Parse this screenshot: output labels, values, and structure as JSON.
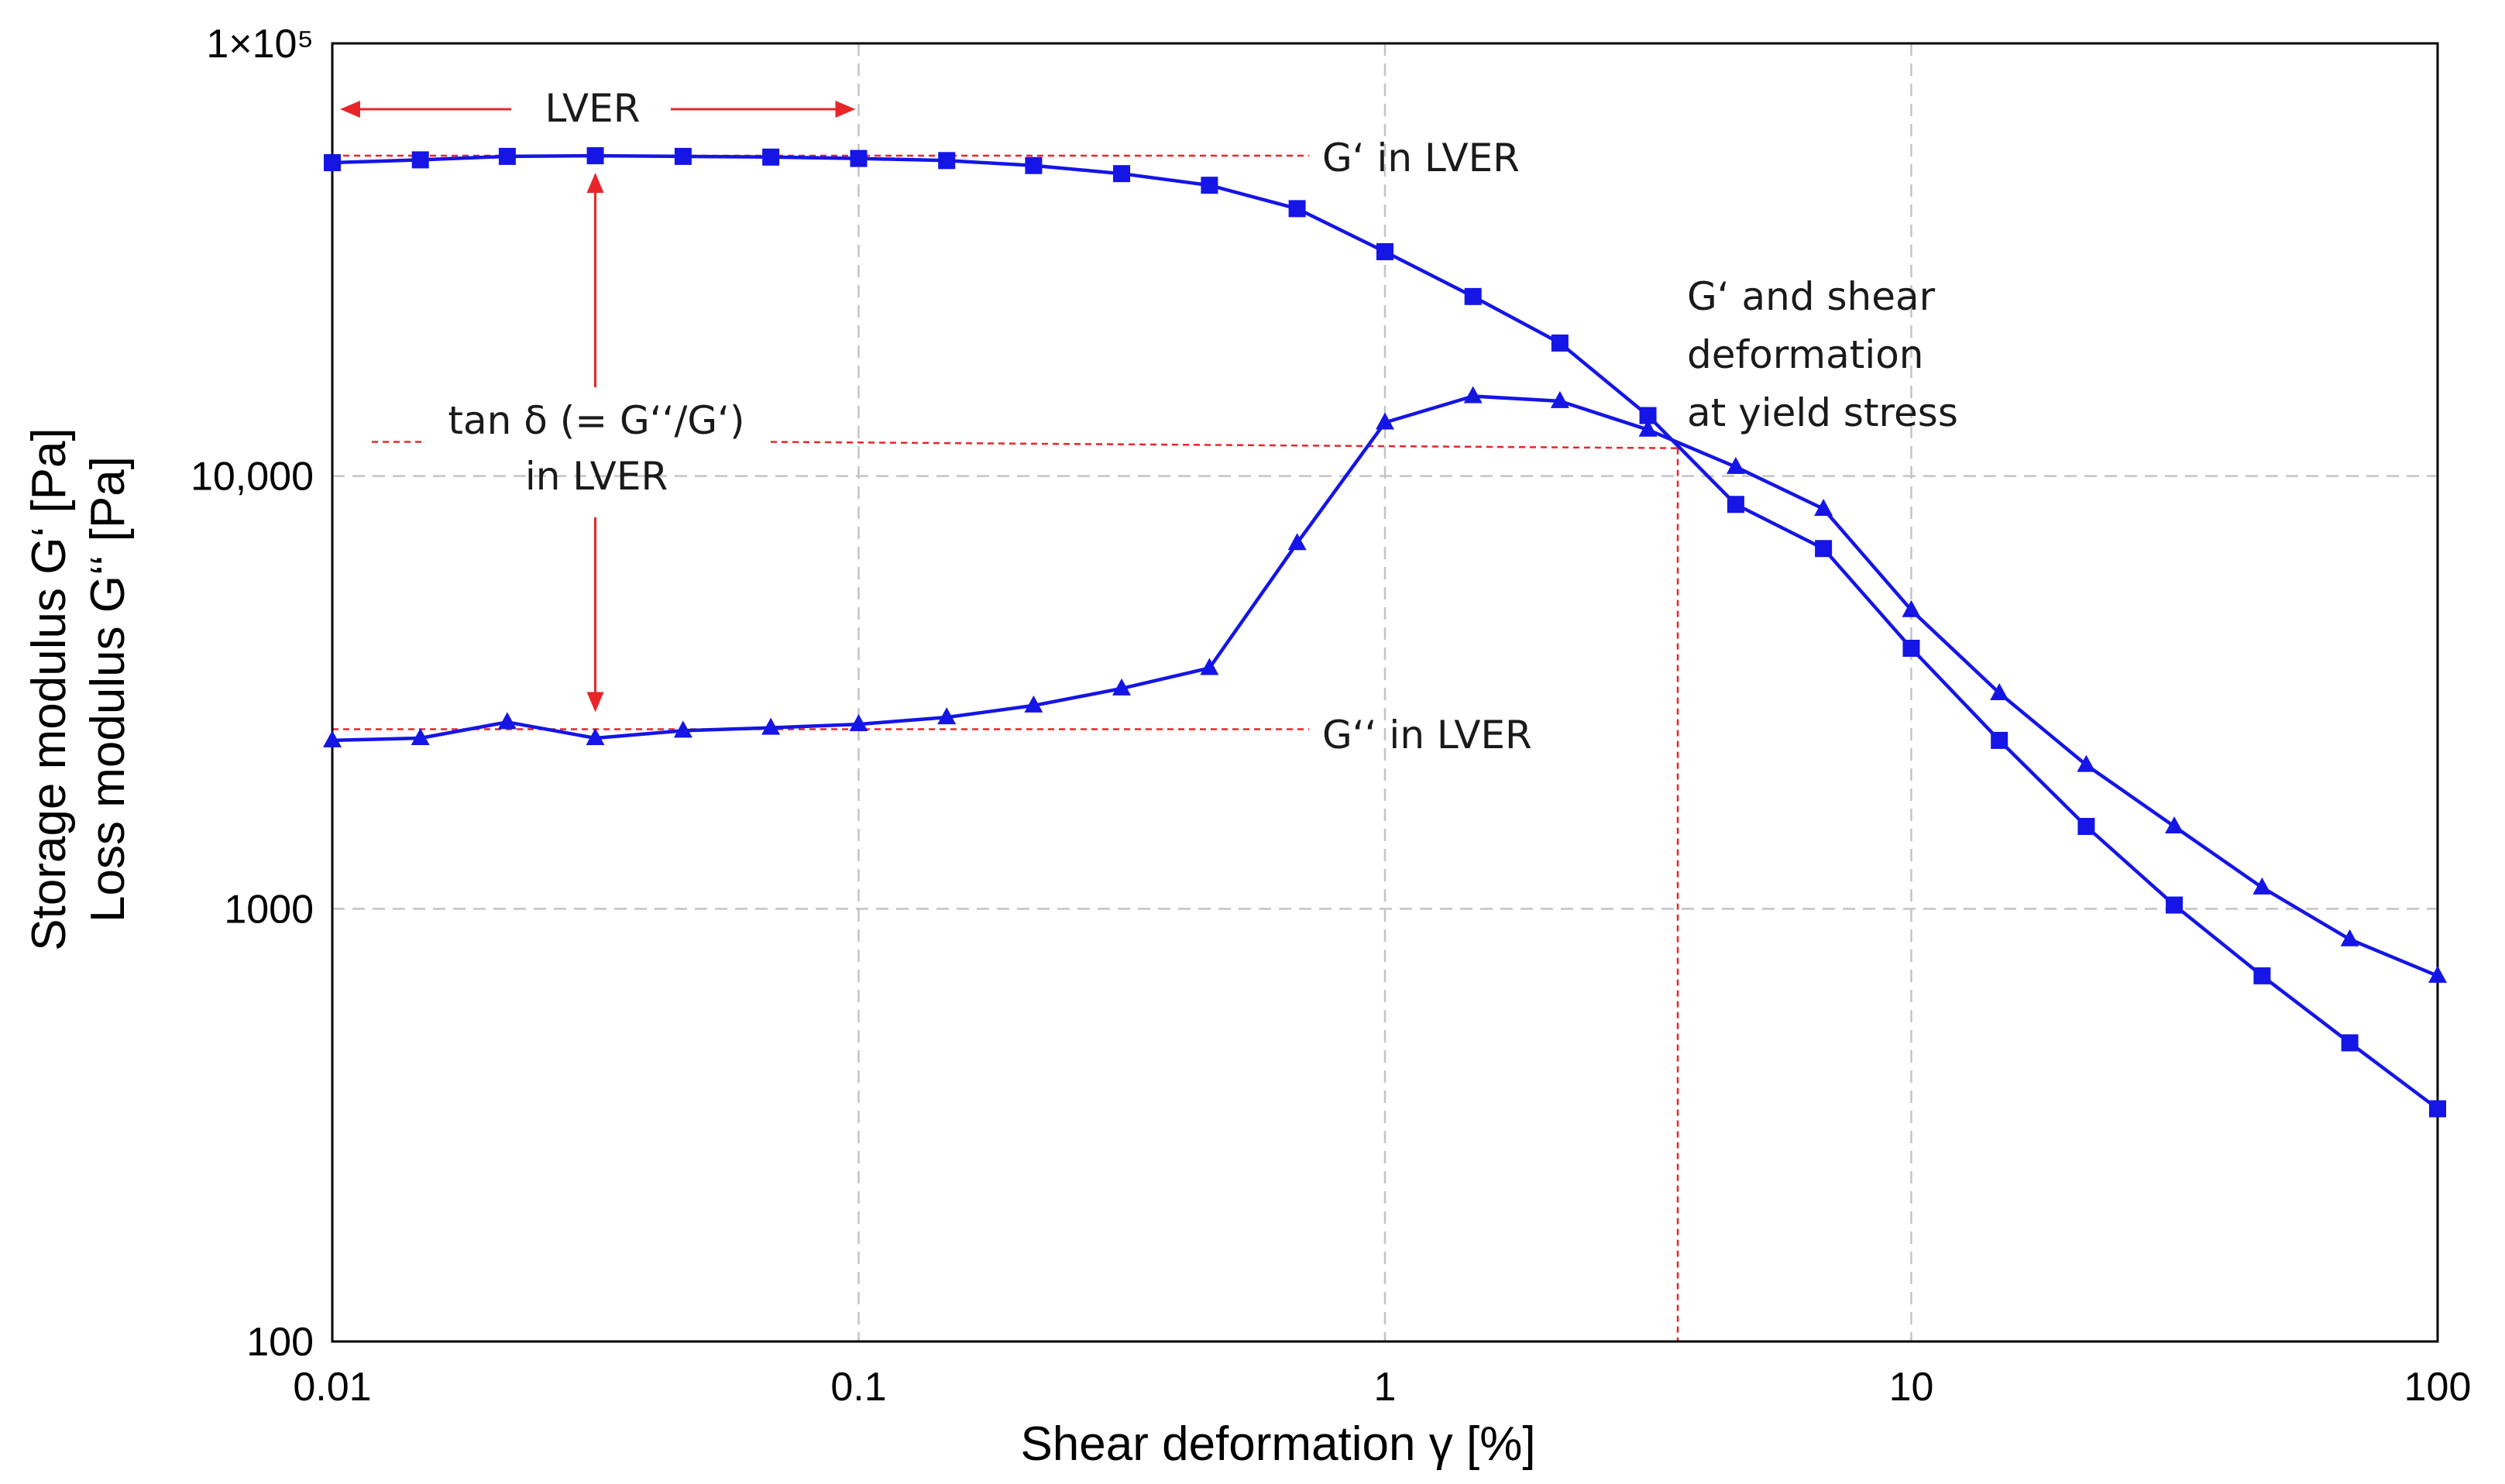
{
  "chart_data": {
    "type": "line",
    "title": "",
    "xlabel": "Shear deformation γ  [%]",
    "ylabel": [
      "Storage modulus G‘ [Pa]",
      "Loss modulus G‘‘ [Pa]"
    ],
    "xscale": "log",
    "yscale": "log",
    "xlim": [
      0.01,
      100
    ],
    "ylim": [
      100,
      100000
    ],
    "grid": true,
    "x_ticks": [
      0.01,
      0.1,
      1,
      10,
      100
    ],
    "x_tick_labels": [
      "0.01",
      "0.1",
      "1",
      "10",
      "100"
    ],
    "y_ticks": [
      100,
      1000,
      10000,
      100000
    ],
    "y_tick_labels": [
      "100",
      "1000",
      "10,000",
      "1×10⁵"
    ],
    "colors": {
      "series": "#1515e6",
      "annotation": "#e8262a"
    },
    "series": [
      {
        "name": "Storage modulus G‘",
        "marker": "square",
        "x": [
          0.01,
          0.0147,
          0.0215,
          0.0316,
          0.0464,
          0.0681,
          0.1,
          0.147,
          0.215,
          0.316,
          0.464,
          0.681,
          1,
          1.47,
          2.15,
          3.16,
          4.64,
          6.81,
          10,
          14.7,
          21.5,
          31.6,
          46.4,
          68.1,
          100
        ],
        "values": [
          53000,
          53800,
          54800,
          55000,
          54800,
          54600,
          54200,
          53600,
          52200,
          50000,
          47000,
          41500,
          33000,
          26000,
          20300,
          13800,
          8600,
          6800,
          4000,
          2450,
          1550,
          1020,
          700,
          490,
          345
        ]
      },
      {
        "name": "Loss modulus G‘‘",
        "marker": "triangle",
        "x": [
          0.01,
          0.0147,
          0.0215,
          0.0316,
          0.0464,
          0.0681,
          0.1,
          0.147,
          0.215,
          0.316,
          0.464,
          0.681,
          1,
          1.47,
          2.15,
          3.16,
          4.64,
          6.81,
          10,
          14.7,
          21.5,
          31.6,
          46.4,
          68.1,
          100
        ],
        "values": [
          2450,
          2480,
          2700,
          2480,
          2580,
          2620,
          2670,
          2770,
          2950,
          3230,
          3600,
          7000,
          13300,
          15300,
          14900,
          12800,
          10500,
          8400,
          4900,
          3150,
          2150,
          1550,
          1120,
          850,
          700
        ]
      }
    ],
    "annotations": {
      "lver": "LVER",
      "g_prime_lver": "G‘ in LVER",
      "g_double_prime_lver": "G‘‘ in LVER",
      "tan_delta": [
        "tan δ (= G‘‘/G‘)",
        "in LVER"
      ],
      "yield": [
        "G‘ and shear",
        "deformation",
        "at yield stress"
      ]
    },
    "reference_values": {
      "lver_x_range": [
        0.01,
        0.1
      ],
      "tan_delta_x": 0.0316,
      "g_prime_lver_level": 55000,
      "g_double_prime_lver_level": 2600,
      "tan_delta_level": 11800,
      "yield_x": 3.6,
      "yield_y": 11600
    }
  }
}
